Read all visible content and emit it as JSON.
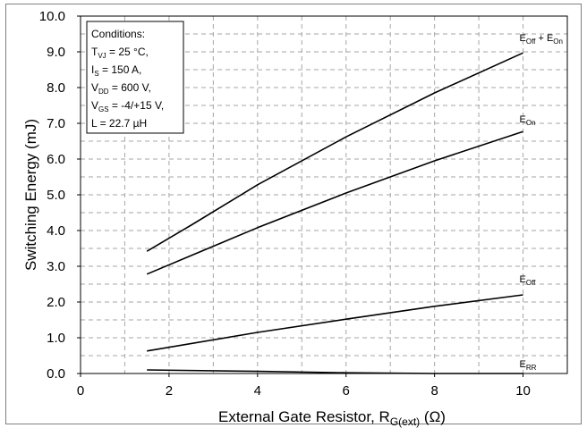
{
  "chart_data": {
    "type": "line",
    "xlabel": "External Gate Resistor, R_G(ext) (Ω)",
    "ylabel": "Switching Energy (mJ)",
    "xlim": [
      0,
      11
    ],
    "ylim": [
      0,
      10
    ],
    "x_ticks": [
      "0",
      "2",
      "4",
      "6",
      "8",
      "10"
    ],
    "y_ticks": [
      "0.0",
      "1.0",
      "2.0",
      "3.0",
      "4.0",
      "5.0",
      "6.0",
      "7.0",
      "8.0",
      "9.0",
      "10.0"
    ],
    "grid": true,
    "conditions": {
      "heading": "Conditions:",
      "lines": [
        {
          "main": "T",
          "sub": "VJ",
          "rest": " = 25 °C,"
        },
        {
          "main": "I",
          "sub": "S",
          "rest": " = 150 A,"
        },
        {
          "main": "V",
          "sub": "DD",
          "rest": " = 600 V,"
        },
        {
          "main": "V",
          "sub": "GS",
          "rest": " = -4/+15 V,"
        },
        {
          "main": "L = 22.7 µH",
          "sub": "",
          "rest": ""
        }
      ]
    },
    "series": [
      {
        "name": "E_Off + E_On",
        "label_parts": [
          {
            "t": "E"
          },
          {
            "t": "Off",
            "sub": true
          },
          {
            "t": " + E"
          },
          {
            "t": "On",
            "sub": true
          }
        ],
        "x": [
          1.5,
          2.5,
          4,
          6,
          8,
          10
        ],
        "y": [
          3.42,
          4.15,
          5.28,
          6.62,
          7.85,
          8.97
        ]
      },
      {
        "name": "E_On",
        "label_parts": [
          {
            "t": "E"
          },
          {
            "t": "On",
            "sub": true
          }
        ],
        "x": [
          1.5,
          2.5,
          4,
          6,
          8,
          10
        ],
        "y": [
          2.78,
          3.3,
          4.08,
          5.05,
          5.95,
          6.77
        ]
      },
      {
        "name": "E_Off",
        "label_parts": [
          {
            "t": "E"
          },
          {
            "t": "Off",
            "sub": true
          }
        ],
        "x": [
          1.5,
          4,
          6,
          8,
          10
        ],
        "y": [
          0.63,
          1.15,
          1.52,
          1.88,
          2.2
        ]
      },
      {
        "name": "E_RR",
        "label_parts": [
          {
            "t": "E"
          },
          {
            "t": "RR",
            "sub": true
          }
        ],
        "x": [
          1.5,
          4,
          6,
          8,
          10
        ],
        "y": [
          0.1,
          0.06,
          0.02,
          0.0,
          0.0
        ]
      }
    ],
    "colors": {
      "line": "#000000",
      "grid": "#a6a6a6",
      "frame": "#7f7f7f"
    }
  }
}
